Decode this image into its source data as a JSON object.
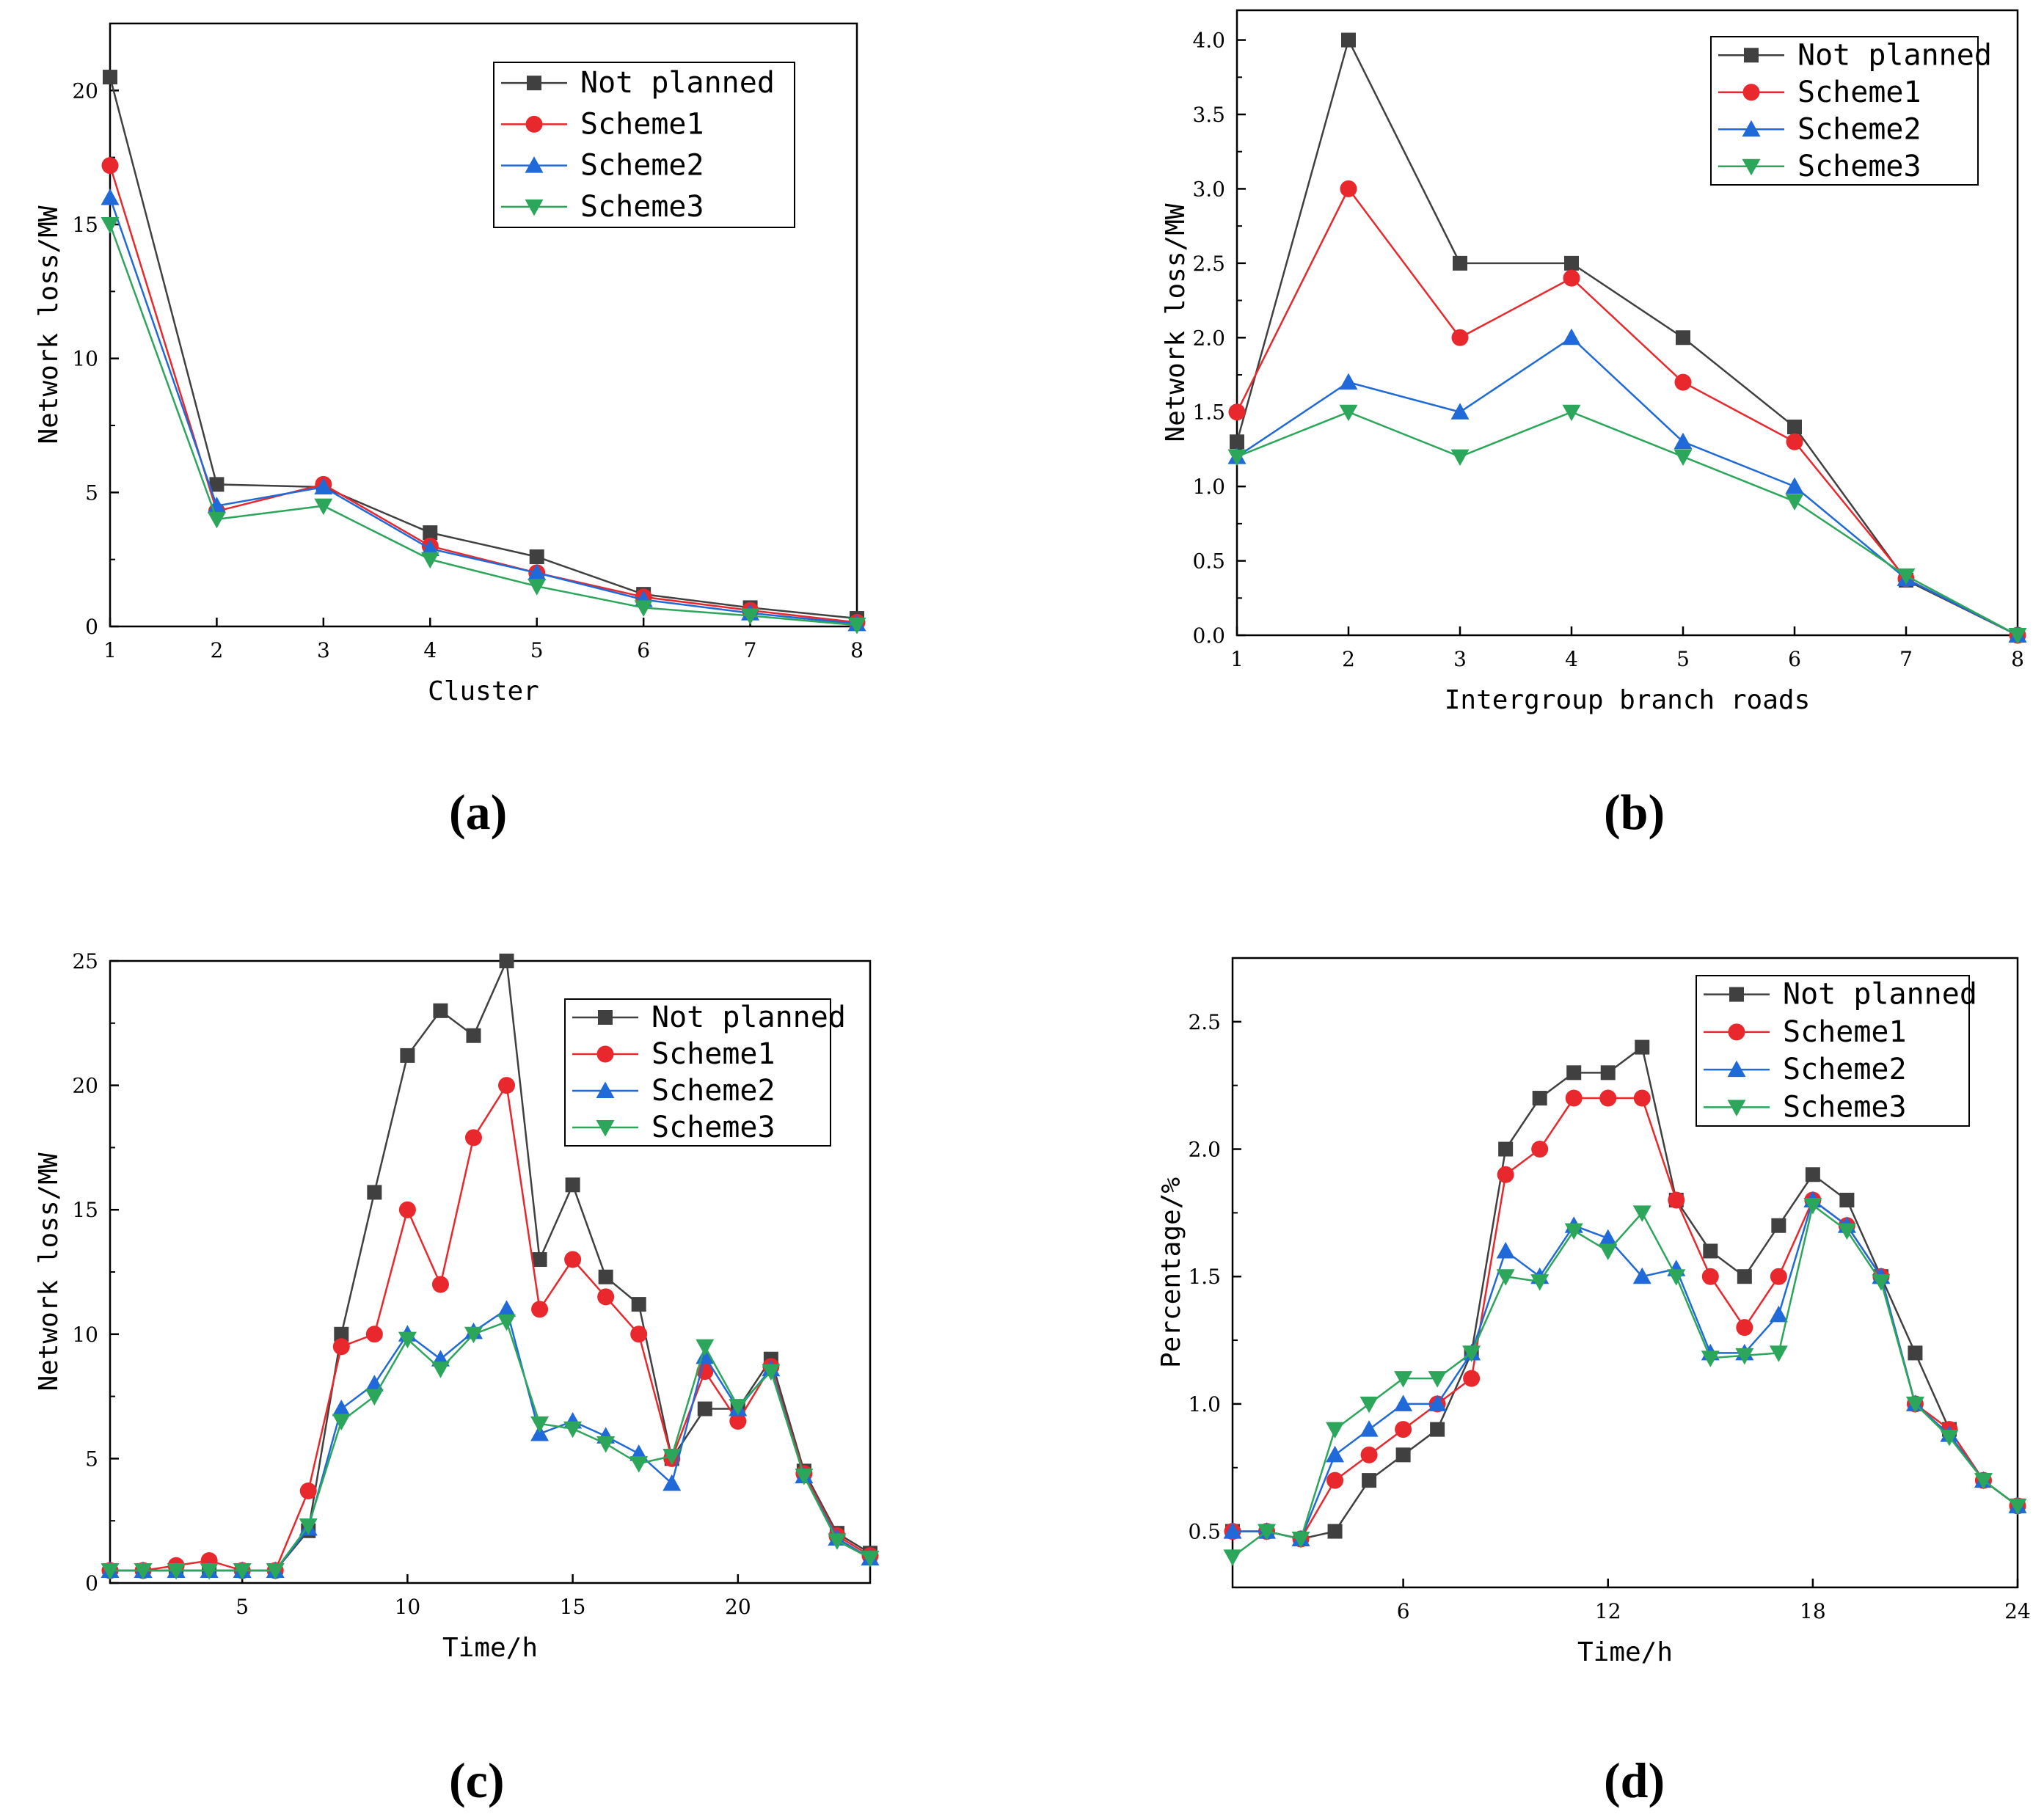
{
  "colors": {
    "not_planned": "#404040",
    "scheme1": "#e8282c",
    "scheme2": "#1f6ad8",
    "scheme3": "#2ca65a"
  },
  "chart_data": [
    {
      "id": "a",
      "type": "line",
      "panel_label": "(a)",
      "title": "",
      "xlabel": "Cluster",
      "ylabel": "Network loss/MW",
      "xlim": [
        1,
        8
      ],
      "ylim": [
        0,
        22.5
      ],
      "xticks": [
        1,
        2,
        3,
        4,
        5,
        6,
        7,
        8
      ],
      "yticks": [
        0,
        5,
        10,
        15,
        20
      ],
      "ytick_labels": [
        "0",
        "5",
        "10",
        "15",
        "20"
      ],
      "legend_position": "top-right",
      "x": [
        1,
        2,
        3,
        4,
        5,
        6,
        7,
        8
      ],
      "series": [
        {
          "name": "Not planned",
          "key": "not_planned",
          "marker": "square",
          "values": [
            20.5,
            5.3,
            5.2,
            3.5,
            2.6,
            1.2,
            0.7,
            0.3
          ]
        },
        {
          "name": "Scheme1",
          "key": "scheme1",
          "marker": "circle",
          "values": [
            17.2,
            4.3,
            5.3,
            3.0,
            2.0,
            1.1,
            0.6,
            0.15
          ]
        },
        {
          "name": "Scheme2",
          "key": "scheme2",
          "marker": "triangle-up",
          "values": [
            16.0,
            4.5,
            5.2,
            2.9,
            2.0,
            1.0,
            0.5,
            0.1
          ]
        },
        {
          "name": "Scheme3",
          "key": "scheme3",
          "marker": "triangle-down",
          "values": [
            15.0,
            4.0,
            4.5,
            2.5,
            1.5,
            0.7,
            0.4,
            0.05
          ]
        }
      ]
    },
    {
      "id": "b",
      "type": "line",
      "panel_label": "(b)",
      "title": "",
      "xlabel": "Intergroup branch roads",
      "ylabel": "Network loss/MW",
      "xlim": [
        1,
        8
      ],
      "ylim": [
        0,
        4.2
      ],
      "xticks": [
        1,
        2,
        3,
        4,
        5,
        6,
        7,
        8
      ],
      "yticks": [
        0,
        0.5,
        1.0,
        1.5,
        2.0,
        2.5,
        3.0,
        3.5,
        4.0
      ],
      "ytick_labels": [
        "0.0",
        "0.5",
        "1.0",
        "1.5",
        "2.0",
        "2.5",
        "3.0",
        "3.5",
        "4.0"
      ],
      "legend_position": "top-right",
      "x": [
        1,
        2,
        3,
        4,
        5,
        6,
        7,
        8
      ],
      "series": [
        {
          "name": "Not planned",
          "key": "not_planned",
          "marker": "square",
          "values": [
            1.3,
            4.0,
            2.5,
            2.5,
            2.0,
            1.4,
            0.37,
            0.0
          ]
        },
        {
          "name": "Scheme1",
          "key": "scheme1",
          "marker": "circle",
          "values": [
            1.5,
            3.0,
            2.0,
            2.4,
            1.7,
            1.3,
            0.38,
            0.0
          ]
        },
        {
          "name": "Scheme2",
          "key": "scheme2",
          "marker": "triangle-up",
          "values": [
            1.2,
            1.7,
            1.5,
            2.0,
            1.3,
            1.0,
            0.38,
            0.0
          ]
        },
        {
          "name": "Scheme3",
          "key": "scheme3",
          "marker": "triangle-down",
          "values": [
            1.2,
            1.5,
            1.2,
            1.5,
            1.2,
            0.9,
            0.4,
            0.0
          ]
        }
      ]
    },
    {
      "id": "c",
      "type": "line",
      "panel_label": "(c)",
      "title": "",
      "xlabel": "Time/h",
      "ylabel": "Network loss/MW",
      "xlim": [
        1,
        24
      ],
      "ylim": [
        0,
        25
      ],
      "xticks": [
        5,
        10,
        15,
        20
      ],
      "yticks": [
        0,
        5,
        10,
        15,
        20,
        25
      ],
      "ytick_labels": [
        "0",
        "5",
        "10",
        "15",
        "20",
        "25"
      ],
      "legend_position": "top-right",
      "x": [
        1,
        2,
        3,
        4,
        5,
        6,
        7,
        8,
        9,
        10,
        11,
        12,
        13,
        14,
        15,
        16,
        17,
        18,
        19,
        20,
        21,
        22,
        23,
        24
      ],
      "series": [
        {
          "name": "Not planned",
          "key": "not_planned",
          "marker": "square",
          "values": [
            0.5,
            0.5,
            0.5,
            0.5,
            0.5,
            0.5,
            2.1,
            10.0,
            15.7,
            21.2,
            23.0,
            22.0,
            25.0,
            13.0,
            16.0,
            12.3,
            11.2,
            5.0,
            7.0,
            7.0,
            9.0,
            4.5,
            2.0,
            1.2
          ]
        },
        {
          "name": "Scheme1",
          "key": "scheme1",
          "marker": "circle",
          "values": [
            0.5,
            0.5,
            0.7,
            0.9,
            0.5,
            0.5,
            3.7,
            9.5,
            10.0,
            15.0,
            12.0,
            17.9,
            20.0,
            11.0,
            13.0,
            11.5,
            10.0,
            5.0,
            8.5,
            6.5,
            8.7,
            4.4,
            1.9,
            1.1
          ]
        },
        {
          "name": "Scheme2",
          "key": "scheme2",
          "marker": "triangle-up",
          "values": [
            0.5,
            0.5,
            0.5,
            0.5,
            0.5,
            0.5,
            2.2,
            7.0,
            8.0,
            10.0,
            9.0,
            10.1,
            11.0,
            6.0,
            6.5,
            5.9,
            5.2,
            4.0,
            9.1,
            7.0,
            8.6,
            4.3,
            1.8,
            1.0
          ]
        },
        {
          "name": "Scheme3",
          "key": "scheme3",
          "marker": "triangle-down",
          "values": [
            0.5,
            0.5,
            0.5,
            0.5,
            0.5,
            0.5,
            2.3,
            6.5,
            7.5,
            9.8,
            8.6,
            10.0,
            10.5,
            6.4,
            6.2,
            5.6,
            4.8,
            5.1,
            9.5,
            7.1,
            8.5,
            4.3,
            1.7,
            1.0
          ]
        }
      ]
    },
    {
      "id": "d",
      "type": "line",
      "panel_label": "(d)",
      "title": "",
      "xlabel": "Time/h",
      "ylabel": "Percentage/%",
      "xlim": [
        1,
        24
      ],
      "ylim": [
        0.28,
        2.75
      ],
      "xticks": [
        6,
        12,
        18,
        24
      ],
      "yticks": [
        0.5,
        1.0,
        1.5,
        2.0,
        2.5
      ],
      "ytick_labels": [
        "0.5",
        "1.0",
        "1.5",
        "2.0",
        "2.5"
      ],
      "legend_position": "top-right",
      "x": [
        1,
        2,
        3,
        4,
        5,
        6,
        7,
        8,
        9,
        10,
        11,
        12,
        13,
        14,
        15,
        16,
        17,
        18,
        19,
        20,
        21,
        22,
        23,
        24
      ],
      "series": [
        {
          "name": "Not planned",
          "key": "not_planned",
          "marker": "square",
          "values": [
            0.5,
            0.5,
            0.47,
            0.5,
            0.7,
            0.8,
            0.9,
            1.2,
            2.0,
            2.2,
            2.3,
            2.3,
            2.4,
            1.8,
            1.6,
            1.5,
            1.7,
            1.9,
            1.8,
            1.5,
            1.2,
            0.9,
            0.7,
            0.6
          ]
        },
        {
          "name": "Scheme1",
          "key": "scheme1",
          "marker": "circle",
          "values": [
            0.5,
            0.5,
            0.47,
            0.7,
            0.8,
            0.9,
            1.0,
            1.1,
            1.9,
            2.0,
            2.2,
            2.2,
            2.2,
            1.8,
            1.5,
            1.3,
            1.5,
            1.8,
            1.7,
            1.5,
            1.0,
            0.9,
            0.7,
            0.6
          ]
        },
        {
          "name": "Scheme2",
          "key": "scheme2",
          "marker": "triangle-up",
          "values": [
            0.5,
            0.5,
            0.47,
            0.8,
            0.9,
            1.0,
            1.0,
            1.2,
            1.6,
            1.5,
            1.7,
            1.65,
            1.5,
            1.53,
            1.2,
            1.2,
            1.35,
            1.8,
            1.7,
            1.5,
            1.0,
            0.88,
            0.7,
            0.6
          ]
        },
        {
          "name": "Scheme3",
          "key": "scheme3",
          "marker": "triangle-down",
          "values": [
            0.4,
            0.5,
            0.47,
            0.9,
            1.0,
            1.1,
            1.1,
            1.2,
            1.5,
            1.48,
            1.68,
            1.6,
            1.75,
            1.5,
            1.18,
            1.19,
            1.2,
            1.78,
            1.68,
            1.48,
            1.0,
            0.87,
            0.7,
            0.6
          ]
        }
      ]
    }
  ]
}
